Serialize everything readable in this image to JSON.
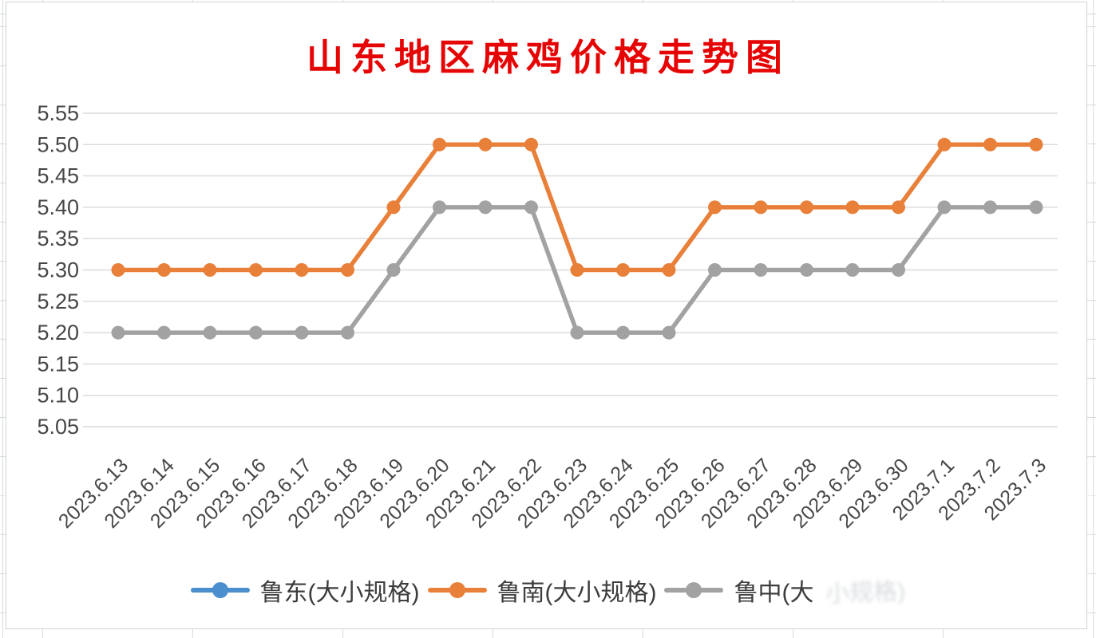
{
  "chart_data": {
    "type": "line",
    "title": "山东地区麻鸡价格走势图",
    "title_color": "#e60505",
    "x": [
      "2023.6.13",
      "2023.6.14",
      "2023.6.15",
      "2023.6.16",
      "2023.6.17",
      "2023.6.18",
      "2023.6.19",
      "2023.6.20",
      "2023.6.21",
      "2023.6.22",
      "2023.6.23",
      "2023.6.24",
      "2023.6.25",
      "2023.6.26",
      "2023.6.27",
      "2023.6.28",
      "2023.6.29",
      "2023.6.30",
      "2023.7.1",
      "2023.7.2",
      "2023.7.3"
    ],
    "y_ticks": [
      "5.55",
      "5.50",
      "5.45",
      "5.40",
      "5.35",
      "5.30",
      "5.25",
      "5.20",
      "5.15",
      "5.10",
      "5.05"
    ],
    "ylim": [
      5.05,
      5.55
    ],
    "grid": "horizontal",
    "legend_position": "bottom",
    "series": [
      {
        "name": "鲁东(大小规格)",
        "color": "#4b8fce",
        "values": []
      },
      {
        "name": "鲁南(大小规格)",
        "color": "#e8803a",
        "values": [
          5.3,
          5.3,
          5.3,
          5.3,
          5.3,
          5.3,
          5.4,
          5.5,
          5.5,
          5.5,
          5.3,
          5.3,
          5.3,
          5.4,
          5.4,
          5.4,
          5.4,
          5.4,
          5.5,
          5.5,
          5.5
        ]
      },
      {
        "name": "鲁中(大小规格)",
        "color": "#a2a2a2",
        "values": [
          5.2,
          5.2,
          5.2,
          5.2,
          5.2,
          5.2,
          5.3,
          5.4,
          5.4,
          5.4,
          5.2,
          5.2,
          5.2,
          5.3,
          5.3,
          5.3,
          5.3,
          5.3,
          5.4,
          5.4,
          5.4
        ]
      }
    ]
  },
  "legend": {
    "items": [
      {
        "label": "鲁东(大小规格)",
        "label_faded": "",
        "color": "#4b8fce"
      },
      {
        "label": "鲁南(大小规格)",
        "label_faded": "",
        "color": "#e8803a"
      },
      {
        "label": "鲁中(大",
        "label_faded": "小规格)",
        "color": "#a2a2a2"
      }
    ]
  },
  "colors": {
    "gridline": "#d9d9d9",
    "axis_text": "#474747",
    "sheet_grid": "#d7dadc"
  }
}
